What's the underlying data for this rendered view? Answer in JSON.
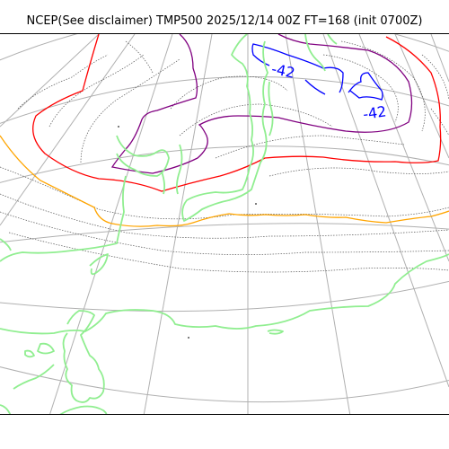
{
  "title": "NCEP(See disclaimer) TMP500 2025/12/14 00Z FT=168 (init 0700Z)",
  "contour_labels": [
    {
      "text": "-42"
    },
    {
      "text": "-42"
    }
  ],
  "colors": {
    "coastline": "#90ee90",
    "grid": "#b0b0b0",
    "isotherm_dotted": "#555555",
    "contour_blue": "#0000ff",
    "contour_purple": "#800080",
    "contour_red": "#ff0000",
    "contour_orange": "#ffa500"
  }
}
